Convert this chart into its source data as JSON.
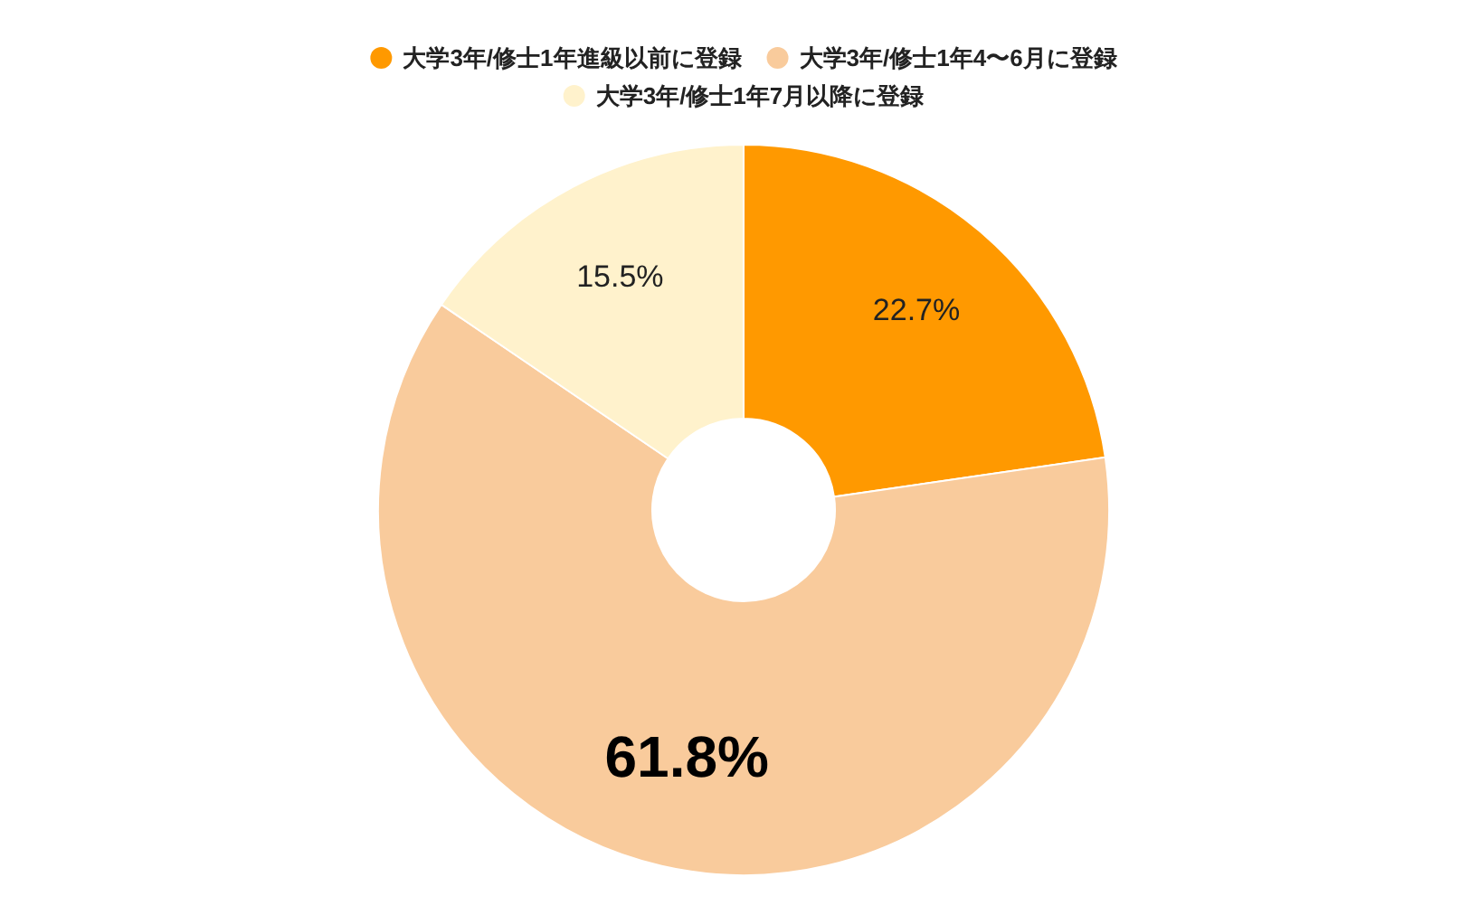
{
  "chart_data": {
    "type": "donut",
    "categories": [
      "大学3年/修士1年進級以前に登録",
      "大学3年/修士1年4〜6月に登録",
      "大学3年/修士1年7月以降に登録"
    ],
    "values": [
      22.7,
      61.8,
      15.5
    ],
    "colors": [
      "#ff9900",
      "#f9cb9c",
      "#fff2cc"
    ],
    "value_labels": [
      "22.7%",
      "61.8%",
      "15.5%"
    ],
    "legend": "top"
  }
}
